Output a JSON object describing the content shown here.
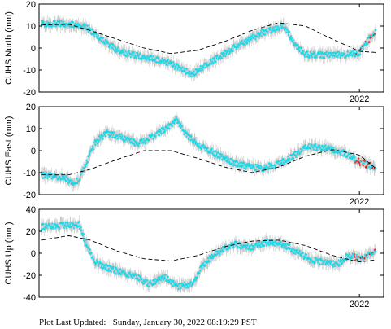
{
  "chart_data": [
    {
      "type": "scatter",
      "ylabel": "CUHS North (mm)",
      "ylim": [
        -20,
        20
      ],
      "yticks": [
        -20,
        -10,
        0,
        10,
        20
      ],
      "xlim": [
        2016.05,
        2022.45
      ],
      "xtick_label": "2022",
      "xtick_value": 2022.0,
      "trend_x": [
        2016.1,
        2016.6,
        2017.0,
        2017.5,
        2018.0,
        2018.5,
        2019.0,
        2019.5,
        2020.0,
        2020.5,
        2021.0,
        2021.5,
        2022.0,
        2022.3
      ],
      "trend_y": [
        10.5,
        10.8,
        8,
        4,
        0,
        -2.5,
        -1,
        3,
        8,
        11.5,
        10,
        4,
        -1.5,
        -2
      ],
      "obs_x": [
        2016.1,
        2016.5,
        2016.9,
        2017.2,
        2017.6,
        2018.0,
        2018.4,
        2018.9,
        2019.2,
        2019.4,
        2019.8,
        2020.2,
        2020.6,
        2020.8,
        2021.0,
        2021.4,
        2021.8,
        2022.0,
        2022.3
      ],
      "obs_y": [
        11,
        11,
        10,
        4,
        -2,
        -4,
        -6,
        -12,
        -7,
        -4,
        2,
        7,
        10,
        2,
        -3,
        -3,
        -3,
        -2,
        8
      ]
    },
    {
      "type": "scatter",
      "ylabel": "CUHS East (mm)",
      "ylim": [
        -20,
        20
      ],
      "yticks": [
        -20,
        -10,
        0,
        10,
        20
      ],
      "xlim": [
        2016.05,
        2022.45
      ],
      "xtick_label": "2022",
      "xtick_value": 2022.0,
      "trend_x": [
        2016.1,
        2016.6,
        2017.0,
        2017.5,
        2018.0,
        2018.5,
        2019.0,
        2019.5,
        2020.0,
        2020.5,
        2021.0,
        2021.5,
        2022.0,
        2022.3
      ],
      "trend_y": [
        -11,
        -11,
        -8.5,
        -4,
        0,
        0,
        -3.5,
        -7.5,
        -10,
        -7.5,
        -2.5,
        0.5,
        -2,
        -8
      ],
      "obs_x": [
        2016.1,
        2016.5,
        2016.7,
        2016.8,
        2017.1,
        2017.3,
        2017.6,
        2017.9,
        2018.2,
        2018.4,
        2018.6,
        2018.8,
        2019.0,
        2019.3,
        2019.6,
        2019.9,
        2020.2,
        2020.5,
        2020.8,
        2021.0,
        2021.4,
        2021.7,
        2022.0,
        2022.3
      ],
      "obs_y": [
        -11,
        -12,
        -15,
        -13,
        4,
        8,
        6,
        3,
        7,
        10,
        14,
        7,
        3,
        -1,
        -5,
        -7,
        -8,
        -6,
        -2,
        2,
        1,
        -1,
        -5,
        -8
      ]
    },
    {
      "type": "scatter",
      "ylabel": "CUHS Up (mm)",
      "ylim": [
        -40,
        40
      ],
      "yticks": [
        -40,
        -20,
        0,
        20,
        40
      ],
      "xlim": [
        2016.05,
        2022.45
      ],
      "xtick_label": "2022",
      "xtick_value": 2022.0,
      "trend_x": [
        2016.1,
        2016.6,
        2017.0,
        2017.5,
        2018.0,
        2018.5,
        2019.0,
        2019.5,
        2020.0,
        2020.5,
        2021.0,
        2021.5,
        2022.0,
        2022.3
      ],
      "trend_y": [
        12,
        16,
        12,
        2,
        -5,
        -7,
        -2,
        6,
        11,
        12,
        7,
        -2,
        -8,
        -6
      ],
      "obs_x": [
        2016.1,
        2016.5,
        2016.8,
        2016.9,
        2017.1,
        2017.4,
        2017.8,
        2018.1,
        2018.4,
        2018.6,
        2018.9,
        2019.1,
        2019.4,
        2019.7,
        2020.0,
        2020.3,
        2020.6,
        2020.8,
        2021.1,
        2021.3,
        2021.6,
        2021.8,
        2022.0,
        2022.3
      ],
      "obs_y": [
        24,
        25,
        26,
        12,
        -8,
        -15,
        -20,
        -28,
        -22,
        -30,
        -28,
        -10,
        2,
        8,
        5,
        10,
        8,
        2,
        -6,
        -8,
        -10,
        -2,
        -5,
        2
      ]
    }
  ],
  "footer": {
    "label": "Plot Last Updated:",
    "value": "Sunday, January 30, 2022 08:19:29 PST"
  },
  "colors": {
    "observations": "#19d9ea",
    "recent": "#e41a1c",
    "error_bars": "#c8c8c8",
    "trend": "#000000",
    "axis": "#000000"
  }
}
